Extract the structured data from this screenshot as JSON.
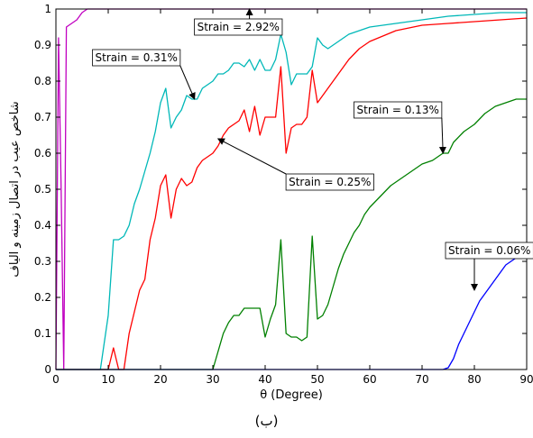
{
  "chart_data": {
    "type": "line",
    "title": "",
    "xlabel": "θ (Degree)",
    "ylabel": "شاخص عیب در اتصال زمینه و الیاف",
    "xlim": [
      0,
      90
    ],
    "ylim": [
      0,
      1
    ],
    "xticks": [
      0,
      10,
      20,
      30,
      40,
      50,
      60,
      70,
      80,
      90
    ],
    "yticks": [
      0,
      0.1,
      0.2,
      0.3,
      0.4,
      0.5,
      0.6,
      0.7,
      0.8,
      0.9,
      1
    ],
    "grid": false,
    "series": [
      {
        "name": "Strain = 2.92%",
        "color": "#c000c0",
        "x": [
          0,
          0.5,
          1,
          1.5,
          2,
          3,
          4,
          5,
          6,
          10,
          20,
          30,
          40,
          50,
          60,
          70,
          80,
          90
        ],
        "y": [
          0,
          0.92,
          0.5,
          0,
          0.95,
          0.96,
          0.97,
          0.99,
          1,
          1,
          1,
          1,
          1,
          1,
          1,
          1,
          1,
          1
        ]
      },
      {
        "name": "Strain = 0.31%",
        "color": "#00b8b8",
        "x": [
          0,
          8.5,
          10,
          11,
          12,
          13,
          14,
          15,
          16,
          17,
          18,
          19,
          20,
          21,
          22,
          23,
          24,
          25,
          26,
          27,
          28,
          29,
          30,
          31,
          32,
          33,
          34,
          35,
          36,
          37,
          38,
          39,
          40,
          41,
          42,
          43,
          44,
          45,
          46,
          47,
          48,
          49,
          50,
          51,
          52,
          53,
          54,
          55,
          56,
          58,
          60,
          65,
          70,
          75,
          80,
          85,
          90
        ],
        "y": [
          0,
          0,
          0.15,
          0.36,
          0.36,
          0.37,
          0.4,
          0.46,
          0.5,
          0.55,
          0.6,
          0.66,
          0.74,
          0.78,
          0.67,
          0.7,
          0.72,
          0.76,
          0.75,
          0.75,
          0.78,
          0.79,
          0.8,
          0.82,
          0.82,
          0.83,
          0.85,
          0.85,
          0.84,
          0.86,
          0.83,
          0.86,
          0.83,
          0.83,
          0.86,
          0.93,
          0.88,
          0.79,
          0.82,
          0.82,
          0.82,
          0.84,
          0.92,
          0.9,
          0.89,
          0.9,
          0.91,
          0.92,
          0.93,
          0.94,
          0.95,
          0.96,
          0.97,
          0.98,
          0.985,
          0.99,
          0.99
        ]
      },
      {
        "name": "Strain = 0.25%",
        "color": "#ff0000",
        "x": [
          0,
          10,
          11,
          12,
          13,
          14,
          15,
          16,
          17,
          18,
          19,
          20,
          21,
          22,
          23,
          24,
          25,
          26,
          27,
          28,
          29,
          30,
          31,
          32,
          33,
          34,
          35,
          36,
          37,
          38,
          39,
          40,
          41,
          42,
          43,
          44,
          45,
          46,
          47,
          48,
          49,
          50,
          51,
          52,
          53,
          54,
          55,
          56,
          58,
          60,
          65,
          70,
          75,
          80,
          85,
          90
        ],
        "y": [
          0,
          0,
          0.06,
          0,
          0,
          0.1,
          0.16,
          0.22,
          0.25,
          0.36,
          0.42,
          0.51,
          0.54,
          0.42,
          0.5,
          0.53,
          0.51,
          0.52,
          0.56,
          0.58,
          0.59,
          0.6,
          0.62,
          0.65,
          0.67,
          0.68,
          0.69,
          0.72,
          0.66,
          0.73,
          0.65,
          0.7,
          0.7,
          0.7,
          0.84,
          0.6,
          0.67,
          0.68,
          0.68,
          0.7,
          0.83,
          0.74,
          0.76,
          0.78,
          0.8,
          0.82,
          0.84,
          0.86,
          0.89,
          0.91,
          0.94,
          0.955,
          0.96,
          0.965,
          0.97,
          0.975
        ]
      },
      {
        "name": "Strain = 0.13%",
        "color": "#008000",
        "x": [
          0,
          30,
          31,
          32,
          33,
          34,
          35,
          36,
          37,
          38,
          39,
          40,
          41,
          42,
          43,
          44,
          45,
          46,
          47,
          48,
          49,
          50,
          51,
          52,
          53,
          54,
          55,
          56,
          57,
          58,
          59,
          60,
          62,
          64,
          66,
          68,
          70,
          72,
          74,
          75,
          76,
          78,
          80,
          82,
          84,
          86,
          88,
          90
        ],
        "y": [
          0,
          0,
          0.05,
          0.1,
          0.13,
          0.15,
          0.15,
          0.17,
          0.17,
          0.17,
          0.17,
          0.09,
          0.14,
          0.18,
          0.36,
          0.1,
          0.09,
          0.09,
          0.08,
          0.09,
          0.37,
          0.14,
          0.15,
          0.18,
          0.23,
          0.28,
          0.32,
          0.35,
          0.38,
          0.4,
          0.43,
          0.45,
          0.48,
          0.51,
          0.53,
          0.55,
          0.57,
          0.58,
          0.6,
          0.6,
          0.63,
          0.66,
          0.68,
          0.71,
          0.73,
          0.74,
          0.75,
          0.75
        ],
        "style": "solid"
      },
      {
        "name": "Strain = 0.06%",
        "color": "#0000ff",
        "x": [
          0,
          74,
          75,
          76,
          77,
          78,
          79,
          80,
          81,
          82,
          83,
          84,
          85,
          86,
          87,
          88,
          89,
          90
        ],
        "y": [
          0,
          0,
          0.005,
          0.03,
          0.07,
          0.1,
          0.13,
          0.16,
          0.19,
          0.21,
          0.23,
          0.25,
          0.27,
          0.29,
          0.3,
          0.31,
          0.32,
          0.32
        ]
      }
    ],
    "annotations": [
      {
        "text": "Strain = 2.92%",
        "x": 27,
        "y": 0.95,
        "arrow_to": [
          37,
          1.0
        ]
      },
      {
        "text": "Strain = 0.31%",
        "x": 7.5,
        "y": 0.865,
        "arrow_to": [
          26.5,
          0.75
        ]
      },
      {
        "text": "Strain = 0.25%",
        "x": 44.5,
        "y": 0.52,
        "arrow_to": [
          31,
          0.64
        ]
      },
      {
        "text": "Strain = 0.13%",
        "x": 57.5,
        "y": 0.72,
        "arrow_to": [
          74,
          0.6
        ]
      },
      {
        "text": "Strain = 0.06%",
        "x": 75,
        "y": 0.33,
        "arrow_to": [
          80,
          0.22
        ]
      }
    ]
  },
  "caption": "(ب)"
}
